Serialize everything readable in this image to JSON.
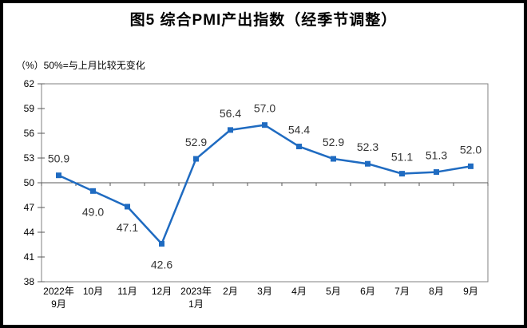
{
  "figure": {
    "title": "图5 综合PMI产出指数（经季节调整）",
    "unit_note": "（%）50%=与上月比较无变化"
  },
  "chart_data": {
    "type": "line",
    "title": "图5 综合PMI产出指数（经季节调整）",
    "subtitle": "（%）50%=与上月比较无变化",
    "categories": [
      "2022年\n9月",
      "10月",
      "11月",
      "12月",
      "2023年\n1月",
      "2月",
      "3月",
      "4月",
      "5月",
      "6月",
      "7月",
      "8月",
      "9月"
    ],
    "series": [
      {
        "name": "综合PMI产出指数",
        "values": [
          50.9,
          49.0,
          47.1,
          42.6,
          52.9,
          56.4,
          57.0,
          54.4,
          52.9,
          52.3,
          51.1,
          51.3,
          52.0
        ]
      }
    ],
    "data_labels": [
      "50.9",
      "49.0",
      "47.1",
      "42.6",
      "52.9",
      "56.4",
      "57.0",
      "54.4",
      "52.9",
      "52.3",
      "51.1",
      "51.3",
      "52.0"
    ],
    "label_side": [
      "above",
      "below",
      "below",
      "below",
      "above",
      "above",
      "above",
      "above",
      "above",
      "above",
      "above",
      "above",
      "above"
    ],
    "yticks": [
      62,
      59,
      56,
      53,
      50,
      47,
      44,
      41,
      38
    ],
    "ylim": [
      38,
      62
    ],
    "reference_line": 50,
    "grid": false,
    "legend": "none",
    "marker": "square",
    "colors": {
      "line": "#1F6BC1",
      "marker": "#1F6BC1",
      "data_label": "#333333",
      "axis_label": "#000000",
      "plot_border": "#808080",
      "reference_line": "#595959",
      "tick": "#595959"
    }
  }
}
